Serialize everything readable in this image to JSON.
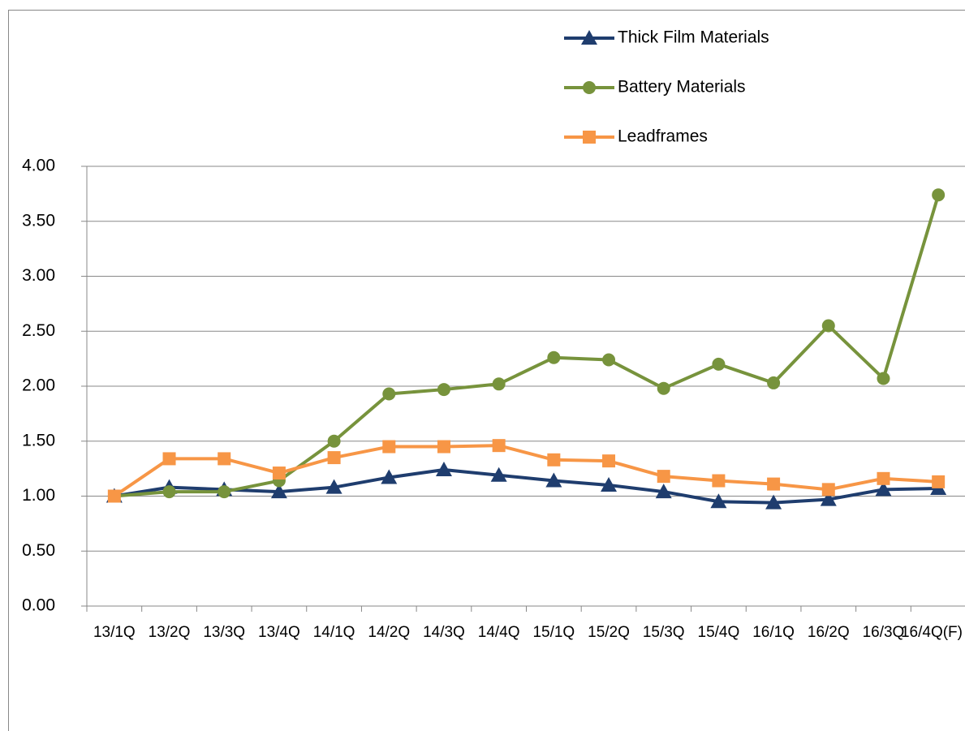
{
  "chart_data": {
    "type": "line",
    "categories": [
      "13/1Q",
      "13/2Q",
      "13/3Q",
      "13/4Q",
      "14/1Q",
      "14/2Q",
      "14/3Q",
      "14/4Q",
      "15/1Q",
      "15/2Q",
      "15/3Q",
      "15/4Q",
      "16/1Q",
      "16/2Q",
      "16/3Q",
      "16/4Q(F)"
    ],
    "series": [
      {
        "name": "Thick Film Materials",
        "color": "#1f3d6e",
        "marker": "triangle",
        "values": [
          1.0,
          1.08,
          1.06,
          1.04,
          1.08,
          1.17,
          1.24,
          1.19,
          1.14,
          1.1,
          1.04,
          0.95,
          0.94,
          0.97,
          1.06,
          1.07
        ]
      },
      {
        "name": "Battery Materials",
        "color": "#77933c",
        "marker": "circle",
        "values": [
          1.0,
          1.04,
          1.04,
          1.14,
          1.5,
          1.93,
          1.97,
          2.02,
          2.26,
          2.24,
          1.98,
          2.2,
          2.03,
          2.55,
          2.07,
          3.74
        ]
      },
      {
        "name": "Leadframes",
        "color": "#f79646",
        "marker": "square",
        "values": [
          1.0,
          1.34,
          1.34,
          1.21,
          1.35,
          1.45,
          1.45,
          1.46,
          1.33,
          1.32,
          1.18,
          1.14,
          1.11,
          1.06,
          1.16,
          1.13
        ]
      }
    ],
    "ylim": [
      0,
      4
    ],
    "yticks": [
      {
        "value": 0,
        "label": "0.00"
      },
      {
        "value": 0.5,
        "label": "0.50"
      },
      {
        "value": 1,
        "label": "1.00"
      },
      {
        "value": 1.5,
        "label": "1.50"
      },
      {
        "value": 2,
        "label": "2.00"
      },
      {
        "value": 2.5,
        "label": "2.50"
      },
      {
        "value": 3,
        "label": "3.00"
      },
      {
        "value": 3.5,
        "label": "3.50"
      },
      {
        "value": 4,
        "label": "4.00"
      }
    ],
    "grid": true,
    "legend": "top-right"
  }
}
